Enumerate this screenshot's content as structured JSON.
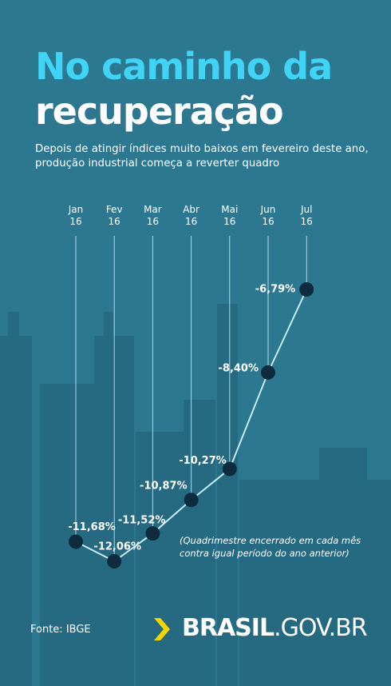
{
  "chart_data": {
    "type": "line",
    "title": [
      "No caminho da",
      "recuperação"
    ],
    "subtitle": "Depois de atingir índices muito baixos em fevereiro deste ano, produção industrial começa a reverter quadro",
    "categories": [
      "Jan 16",
      "Fev 16",
      "Mar 16",
      "Abr 16",
      "Mai 16",
      "Jun 16",
      "Jul 16"
    ],
    "values": [
      -11.68,
      -12.06,
      -11.52,
      -10.87,
      -10.27,
      -8.4,
      -6.79
    ],
    "value_labels": [
      "-11,68%",
      "-12,06%",
      "-11,52%",
      "-10,87%",
      "-10,27%",
      "-8,40%",
      "-6,79%"
    ],
    "color": "#c6ecf5",
    "marker_color": "#0e2c3e",
    "note": "(Quadrimestre encerrado em cada mês contra igual período do ano anterior)",
    "source": "Fonte: IBGE",
    "logo": [
      "BRASIL",
      ".GOV.BR"
    ]
  }
}
